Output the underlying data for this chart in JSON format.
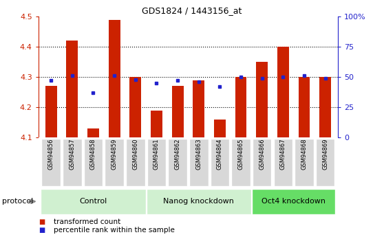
{
  "title": "GDS1824 / 1443156_at",
  "samples": [
    "GSM94856",
    "GSM94857",
    "GSM94858",
    "GSM94859",
    "GSM94860",
    "GSM94861",
    "GSM94862",
    "GSM94863",
    "GSM94864",
    "GSM94865",
    "GSM94866",
    "GSM94867",
    "GSM94868",
    "GSM94869"
  ],
  "transformed_count": [
    4.27,
    4.42,
    4.13,
    4.49,
    4.3,
    4.19,
    4.27,
    4.29,
    4.16,
    4.3,
    4.35,
    4.4,
    4.3,
    4.3
  ],
  "percentile_rank": [
    47,
    51,
    37,
    51,
    48,
    45,
    47,
    46,
    42,
    50,
    49,
    50,
    51,
    49
  ],
  "ylim_left": [
    4.1,
    4.5
  ],
  "ylim_right": [
    0,
    100
  ],
  "yticks_left": [
    4.1,
    4.2,
    4.3,
    4.4,
    4.5
  ],
  "yticks_right": [
    0,
    25,
    50,
    75,
    100
  ],
  "ytick_labels_right": [
    "0",
    "25",
    "50",
    "75",
    "100%"
  ],
  "groups": [
    {
      "label": "Control",
      "start": 0,
      "end": 5,
      "color": "#d0f0d0"
    },
    {
      "label": "Nanog knockdown",
      "start": 5,
      "end": 10,
      "color": "#d0f0d0"
    },
    {
      "label": "Oct4 knockdown",
      "start": 10,
      "end": 14,
      "color": "#66dd66"
    }
  ],
  "bar_color": "#cc2200",
  "dot_color": "#2222cc",
  "label_bg_color": "#d8d8d8",
  "plot_bg": "#ffffff",
  "protocol_label": "protocol",
  "legend_items": [
    "transformed count",
    "percentile rank within the sample"
  ],
  "grid_color": "#000000",
  "title_color": "#000000",
  "left_axis_color": "#cc2200",
  "right_axis_color": "#2222cc"
}
